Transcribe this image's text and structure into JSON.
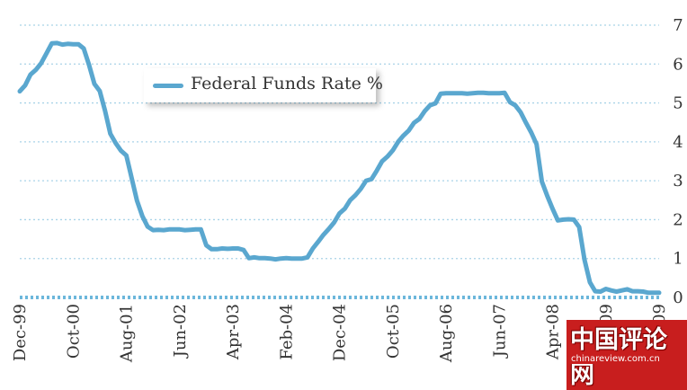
{
  "chart_data": {
    "type": "line",
    "title": "",
    "xlabel": "",
    "ylabel": "",
    "ylim": [
      0,
      7
    ],
    "yticks": [
      0,
      1,
      2,
      3,
      4,
      5,
      6,
      7
    ],
    "grid": true,
    "legend_position": "top-left",
    "x_tick_labels": [
      "Dec-99",
      "Oct-00",
      "Aug-01",
      "Jun-02",
      "Apr-03",
      "Feb-04",
      "Dec-04",
      "Oct-05",
      "Aug-06",
      "Jun-07",
      "Apr-08",
      "Feb-09",
      "Dec-09"
    ],
    "x_tick_dates": [
      "1999-12",
      "2000-10",
      "2001-08",
      "2002-06",
      "2003-04",
      "2004-02",
      "2004-12",
      "2005-10",
      "2006-08",
      "2007-06",
      "2008-04",
      "2009-02",
      "2009-12"
    ],
    "series": [
      {
        "name": "Federal Funds Rate %",
        "color": "#5aa7cf",
        "x": [
          "1999-12",
          "2000-01",
          "2000-02",
          "2000-03",
          "2000-04",
          "2000-05",
          "2000-06",
          "2000-07",
          "2000-08",
          "2000-09",
          "2000-10",
          "2000-11",
          "2000-12",
          "2001-01",
          "2001-02",
          "2001-03",
          "2001-04",
          "2001-05",
          "2001-06",
          "2001-07",
          "2001-08",
          "2001-09",
          "2001-10",
          "2001-11",
          "2001-12",
          "2002-01",
          "2002-02",
          "2002-03",
          "2002-04",
          "2002-05",
          "2002-06",
          "2002-07",
          "2002-08",
          "2002-09",
          "2002-10",
          "2002-11",
          "2002-12",
          "2003-01",
          "2003-02",
          "2003-03",
          "2003-04",
          "2003-05",
          "2003-06",
          "2003-07",
          "2003-08",
          "2003-09",
          "2003-10",
          "2003-11",
          "2003-12",
          "2004-01",
          "2004-02",
          "2004-03",
          "2004-04",
          "2004-05",
          "2004-06",
          "2004-07",
          "2004-08",
          "2004-09",
          "2004-10",
          "2004-11",
          "2004-12",
          "2005-01",
          "2005-02",
          "2005-03",
          "2005-04",
          "2005-05",
          "2005-06",
          "2005-07",
          "2005-08",
          "2005-09",
          "2005-10",
          "2005-11",
          "2005-12",
          "2006-01",
          "2006-02",
          "2006-03",
          "2006-04",
          "2006-05",
          "2006-06",
          "2006-07",
          "2006-08",
          "2006-09",
          "2006-10",
          "2006-11",
          "2006-12",
          "2007-01",
          "2007-02",
          "2007-03",
          "2007-04",
          "2007-05",
          "2007-06",
          "2007-07",
          "2007-08",
          "2007-09",
          "2007-10",
          "2007-11",
          "2007-12",
          "2008-01",
          "2008-02",
          "2008-03",
          "2008-04",
          "2008-05",
          "2008-06",
          "2008-07",
          "2008-08",
          "2008-09",
          "2008-10",
          "2008-11",
          "2008-12",
          "2009-01",
          "2009-02",
          "2009-03",
          "2009-04",
          "2009-05",
          "2009-06",
          "2009-07",
          "2009-08",
          "2009-09",
          "2009-10",
          "2009-11",
          "2009-12"
        ],
        "values": [
          5.3,
          5.45,
          5.73,
          5.85,
          6.02,
          6.27,
          6.53,
          6.54,
          6.5,
          6.52,
          6.51,
          6.51,
          6.4,
          5.98,
          5.49,
          5.31,
          4.8,
          4.21,
          3.97,
          3.77,
          3.65,
          3.07,
          2.49,
          2.09,
          1.82,
          1.73,
          1.74,
          1.73,
          1.75,
          1.75,
          1.75,
          1.73,
          1.74,
          1.75,
          1.75,
          1.34,
          1.24,
          1.24,
          1.26,
          1.25,
          1.26,
          1.26,
          1.22,
          1.01,
          1.03,
          1.01,
          1.01,
          1.0,
          0.98,
          1.0,
          1.01,
          1.0,
          1.0,
          1.0,
          1.03,
          1.26,
          1.43,
          1.61,
          1.76,
          1.93,
          2.16,
          2.28,
          2.5,
          2.63,
          2.79,
          3.0,
          3.04,
          3.26,
          3.5,
          3.62,
          3.78,
          4.0,
          4.16,
          4.29,
          4.49,
          4.59,
          4.79,
          4.94,
          4.99,
          5.24,
          5.25,
          5.25,
          5.25,
          5.25,
          5.24,
          5.25,
          5.26,
          5.26,
          5.25,
          5.25,
          5.25,
          5.26,
          5.02,
          4.94,
          4.76,
          4.49,
          4.24,
          3.94,
          2.98,
          2.61,
          2.28,
          1.98,
          2.0,
          2.01,
          2.0,
          1.81,
          0.97,
          0.39,
          0.16,
          0.15,
          0.22,
          0.18,
          0.15,
          0.18,
          0.21,
          0.16,
          0.16,
          0.15,
          0.12,
          0.12,
          0.12
        ]
      }
    ]
  },
  "legend": {
    "label": "Federal Funds Rate %",
    "swatch_color": "#5aa7cf"
  },
  "watermark": {
    "logo_text": "中国评论网",
    "url_text": "chinareview.com.cn"
  }
}
